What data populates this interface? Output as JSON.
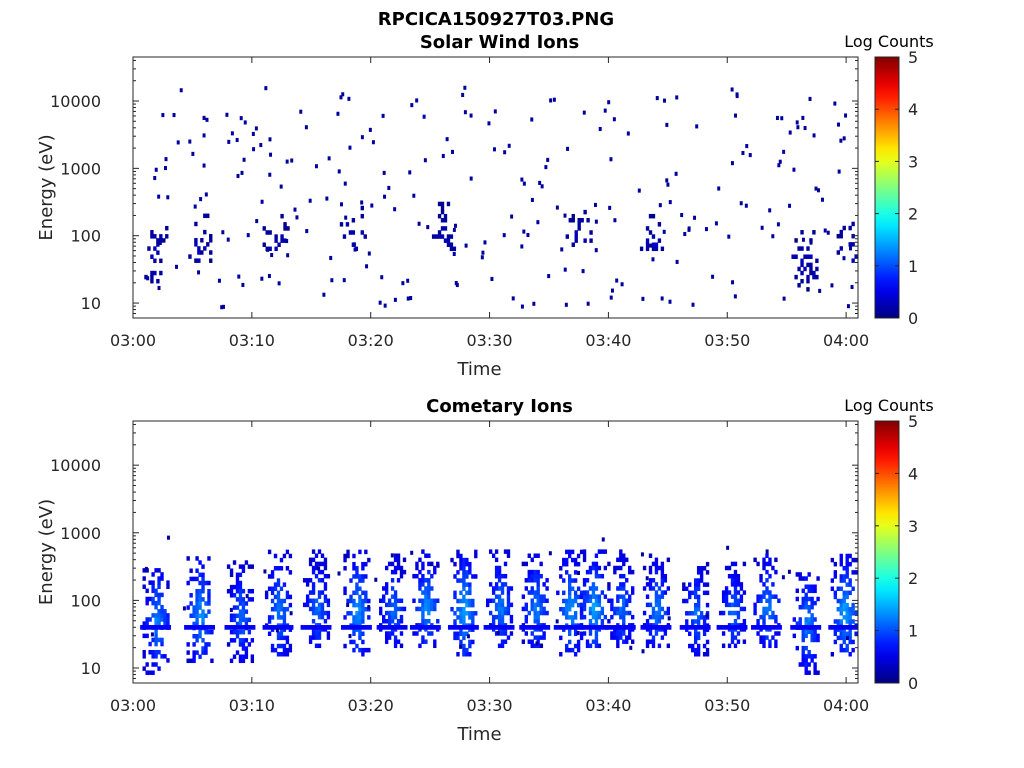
{
  "figure": {
    "title": "RPCICA150927T03.PNG"
  },
  "chart_data": [
    {
      "type": "heatmap",
      "title": "Solar Wind Ions",
      "xlabel": "Time",
      "ylabel": "Energy (eV)",
      "x_range": [
        "03:00",
        "04:01"
      ],
      "x_ticks": [
        "03:00",
        "03:10",
        "03:20",
        "03:30",
        "03:40",
        "03:50",
        "04:00"
      ],
      "y_scale": "log",
      "y_range": [
        6,
        45000
      ],
      "y_ticks": [
        "10",
        "100",
        "1000",
        "10000"
      ],
      "colorbar": {
        "label": "Log Counts",
        "ticks": [
          "0",
          "1",
          "2",
          "3",
          "4",
          "5"
        ],
        "range": [
          0,
          5
        ],
        "colormap": "jet"
      },
      "clusters": [
        {
          "t": 1.8,
          "emin": 15,
          "emax": 150,
          "level": 0.3
        },
        {
          "t": 5.5,
          "emin": 40,
          "emax": 200,
          "level": 0.3
        },
        {
          "t": 12.0,
          "emin": 60,
          "emax": 200,
          "level": 0.3
        },
        {
          "t": 18.5,
          "emin": 60,
          "emax": 250,
          "level": 0.3
        },
        {
          "t": 26.0,
          "emin": 60,
          "emax": 300,
          "level": 0.3
        },
        {
          "t": 37.5,
          "emin": 60,
          "emax": 250,
          "level": 0.3
        },
        {
          "t": 43.5,
          "emin": 60,
          "emax": 200,
          "level": 0.3
        },
        {
          "t": 56.5,
          "emin": 15,
          "emax": 120,
          "level": 0.3
        },
        {
          "t": 60.3,
          "emin": 40,
          "emax": 150,
          "level": 0.3
        }
      ],
      "sparse_points": 260,
      "grid": false
    },
    {
      "type": "heatmap",
      "title": "Cometary Ions",
      "xlabel": "Time",
      "ylabel": "Energy (eV)",
      "x_range": [
        "03:00",
        "04:01"
      ],
      "x_ticks": [
        "03:00",
        "03:10",
        "03:20",
        "03:30",
        "03:40",
        "03:50",
        "04:00"
      ],
      "y_scale": "log",
      "y_range": [
        6,
        45000
      ],
      "y_ticks": [
        "10",
        "100",
        "1000",
        "10000"
      ],
      "colorbar": {
        "label": "Log Counts",
        "ticks": [
          "0",
          "1",
          "2",
          "3",
          "4",
          "5"
        ],
        "range": [
          0,
          5
        ],
        "colormap": "jet"
      },
      "clusters": [
        {
          "t": 1.9,
          "emin": 8,
          "emax": 300,
          "level": 1.3
        },
        {
          "t": 5.6,
          "emin": 12,
          "emax": 400,
          "level": 1.4
        },
        {
          "t": 9.0,
          "emin": 12,
          "emax": 350,
          "level": 1.2
        },
        {
          "t": 12.2,
          "emin": 15,
          "emax": 500,
          "level": 1.3
        },
        {
          "t": 15.4,
          "emin": 20,
          "emax": 500,
          "level": 1.2
        },
        {
          "t": 18.8,
          "emin": 15,
          "emax": 550,
          "level": 1.4
        },
        {
          "t": 21.8,
          "emin": 20,
          "emax": 450,
          "level": 1.2
        },
        {
          "t": 24.6,
          "emin": 20,
          "emax": 550,
          "level": 1.4
        },
        {
          "t": 27.8,
          "emin": 15,
          "emax": 550,
          "level": 1.5
        },
        {
          "t": 30.8,
          "emin": 20,
          "emax": 550,
          "level": 1.3
        },
        {
          "t": 33.8,
          "emin": 20,
          "emax": 550,
          "level": 1.3
        },
        {
          "t": 36.7,
          "emin": 15,
          "emax": 550,
          "level": 1.4
        },
        {
          "t": 38.7,
          "emin": 20,
          "emax": 500,
          "level": 1.5
        },
        {
          "t": 41.0,
          "emin": 20,
          "emax": 500,
          "level": 1.2
        },
        {
          "t": 44.0,
          "emin": 20,
          "emax": 450,
          "level": 1.3
        },
        {
          "t": 47.3,
          "emin": 15,
          "emax": 350,
          "level": 1.2
        },
        {
          "t": 50.4,
          "emin": 20,
          "emax": 350,
          "level": 1.2
        },
        {
          "t": 53.3,
          "emin": 20,
          "emax": 450,
          "level": 1.3
        },
        {
          "t": 56.6,
          "emin": 8,
          "emax": 250,
          "level": 1.3
        },
        {
          "t": 59.8,
          "emin": 15,
          "emax": 450,
          "level": 1.5
        }
      ],
      "sparse_points": 40,
      "grid": false
    }
  ]
}
